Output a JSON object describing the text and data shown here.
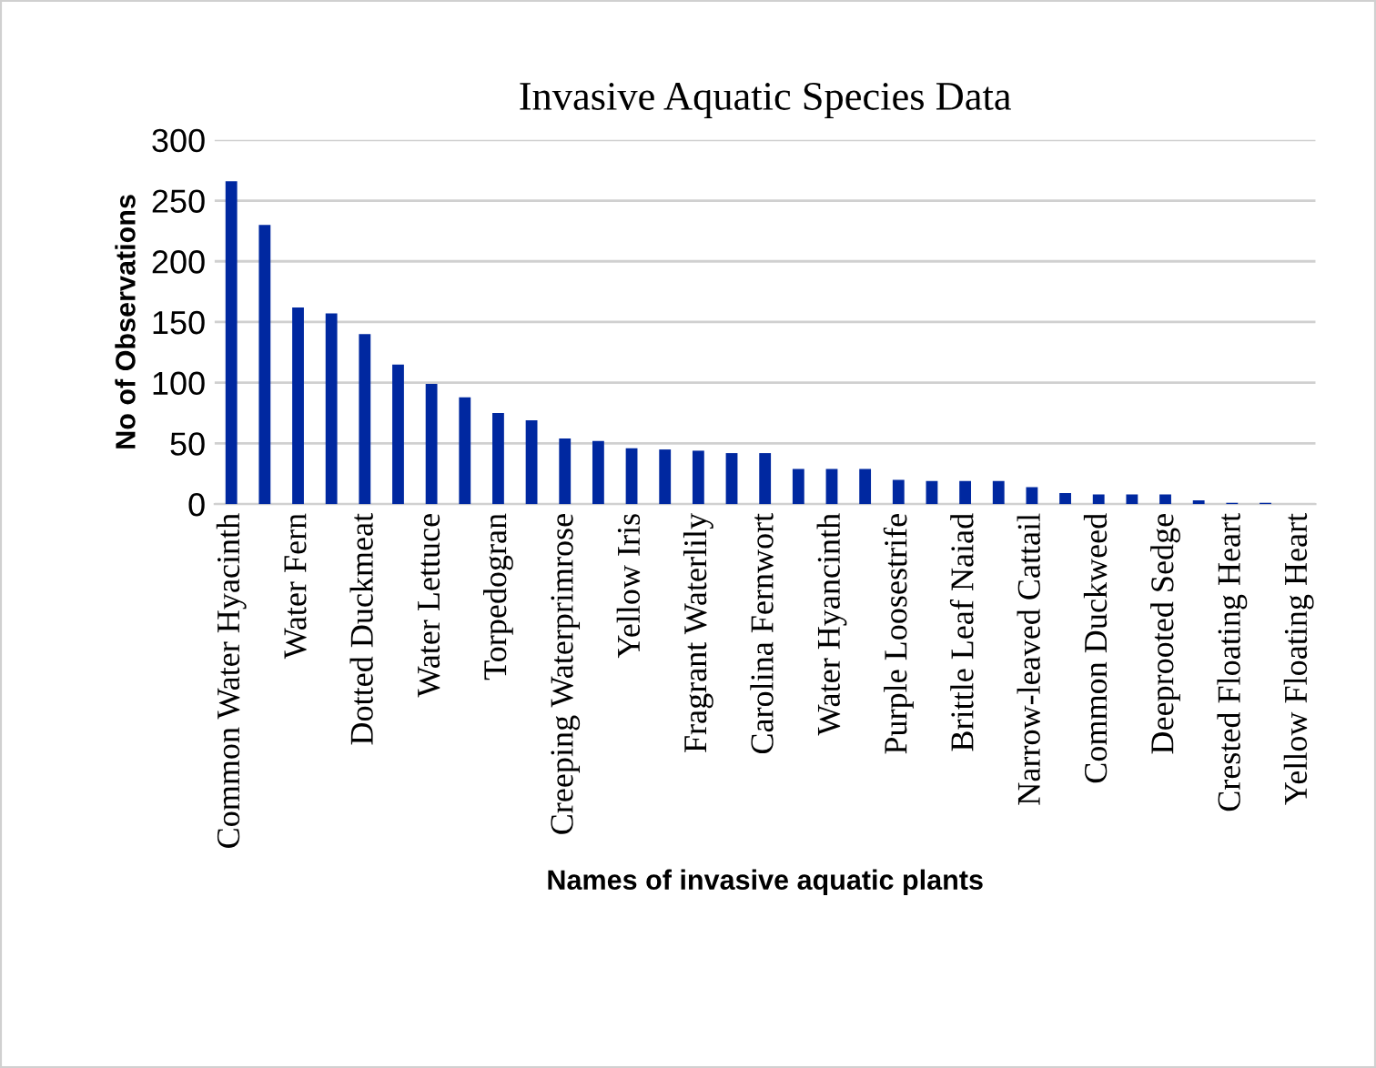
{
  "chart_data": {
    "type": "bar",
    "title": "Invasive Aquatic Species Data",
    "xlabel": "Names of invasive aquatic plants",
    "ylabel": "No of Observations",
    "categories": [
      "Common Water Hyacinth",
      null,
      "Water Fern",
      null,
      "Dotted Duckmeat",
      null,
      "Water Lettuce",
      null,
      "Torpedogran",
      null,
      "Creeping Waterprimrose",
      null,
      "Yellow Iris",
      null,
      "Fragrant Waterlily",
      null,
      "Carolina Fernwort",
      null,
      "Water Hyancinth",
      null,
      "Purple Loosestrife",
      null,
      "Brittle Leaf Naiad",
      null,
      "Narrow-leaved Cattail",
      null,
      "Common Duckweed",
      null,
      "Deeprooted Sedge",
      null,
      "Crested Floating Heart",
      null,
      "Yellow Floating Heart"
    ],
    "values": [
      266,
      230,
      162,
      157,
      140,
      115,
      99,
      88,
      75,
      69,
      54,
      52,
      46,
      45,
      44,
      42,
      42,
      29,
      29,
      29,
      20,
      19,
      19,
      19,
      14,
      9,
      8,
      8,
      8,
      3,
      1,
      1,
      0
    ],
    "color": "#0028a0",
    "ylim": [
      0,
      300
    ],
    "yticks": [
      0,
      50,
      100,
      150,
      200,
      250,
      300
    ],
    "grid": "y",
    "legend": false
  }
}
